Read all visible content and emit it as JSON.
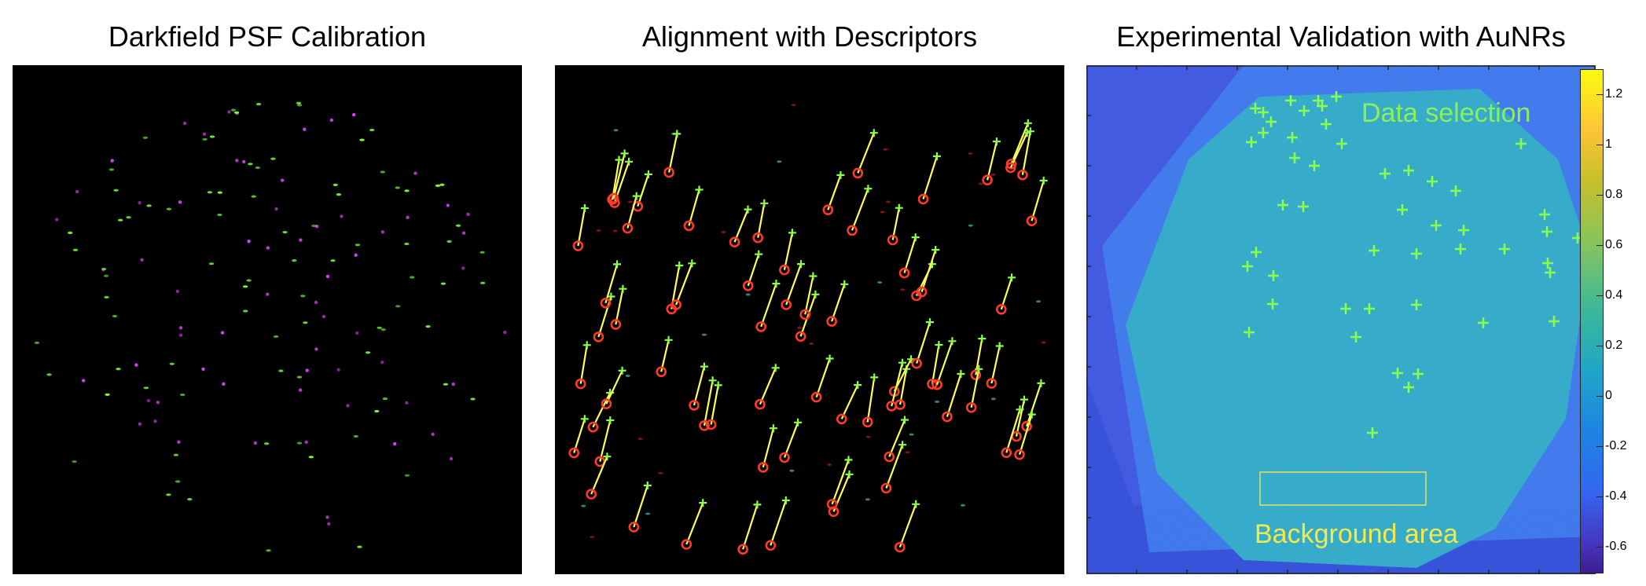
{
  "panels": [
    {
      "title": "Darkfield PSF Calibration",
      "green_color": "#7cff3a",
      "magenta_color": "#e040ff"
    },
    {
      "title": "Alignment with Descriptors",
      "marker_color": "#ff3a2a",
      "line_color": "#ffff55",
      "cross_color": "#8dff4a"
    },
    {
      "title": "Experimental Validation with AuNRs",
      "data_label": "Data selection",
      "background_label": "Background area",
      "cross_color": "#8dff4a"
    }
  ],
  "colorbar": {
    "ticks": [
      "1.2",
      "1",
      "0.8",
      "0.6",
      "0.4",
      "0.2",
      "0",
      "-0.2",
      "-0.4",
      "-0.6"
    ],
    "tick_values": [
      1.2,
      1.0,
      0.8,
      0.6,
      0.4,
      0.2,
      0.0,
      -0.2,
      -0.4,
      -0.6
    ],
    "range": [
      -0.7,
      1.3
    ],
    "colormap": "parula"
  }
}
